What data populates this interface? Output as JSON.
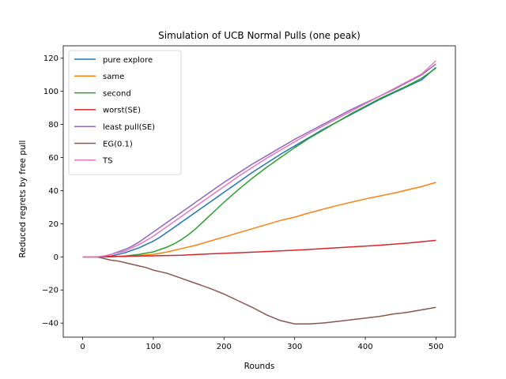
{
  "chart_data": {
    "type": "line",
    "title": "Simulation of UCB Normal Pulls (one peak)",
    "xlabel": "Rounds",
    "ylabel": "Reduced regrets by free pull",
    "xlim": [
      -27.5,
      527.5
    ],
    "ylim": [
      -48.5,
      127.5
    ],
    "xticks": [
      0,
      100,
      200,
      300,
      400,
      500
    ],
    "yticks": [
      -40,
      -20,
      0,
      20,
      40,
      60,
      80,
      100,
      120
    ],
    "legend_position": "top-left",
    "grid": false,
    "series": [
      {
        "name": "pure explore",
        "color": "#1f77b4",
        "points": [
          [
            0,
            0
          ],
          [
            20,
            0
          ],
          [
            40,
            0.5
          ],
          [
            50,
            1.5
          ],
          [
            60,
            2.5
          ],
          [
            70,
            4
          ],
          [
            80,
            5.5
          ],
          [
            90,
            7.5
          ],
          [
            100,
            9.5
          ],
          [
            110,
            12
          ],
          [
            120,
            15
          ],
          [
            130,
            18
          ],
          [
            140,
            21
          ],
          [
            150,
            24
          ],
          [
            160,
            27
          ],
          [
            170,
            30
          ],
          [
            180,
            33
          ],
          [
            190,
            36
          ],
          [
            200,
            39
          ],
          [
            220,
            45
          ],
          [
            240,
            51
          ],
          [
            260,
            56.5
          ],
          [
            280,
            62
          ],
          [
            300,
            67
          ],
          [
            320,
            72
          ],
          [
            340,
            77
          ],
          [
            360,
            81.5
          ],
          [
            380,
            86
          ],
          [
            400,
            90.5
          ],
          [
            420,
            95
          ],
          [
            440,
            99
          ],
          [
            460,
            103
          ],
          [
            480,
            107
          ],
          [
            500,
            114.5
          ]
        ]
      },
      {
        "name": "same",
        "color": "#ff7f0e",
        "points": [
          [
            0,
            0
          ],
          [
            20,
            0
          ],
          [
            40,
            0.3
          ],
          [
            60,
            0.5
          ],
          [
            80,
            0.8
          ],
          [
            100,
            1.5
          ],
          [
            120,
            3
          ],
          [
            140,
            5
          ],
          [
            160,
            7
          ],
          [
            180,
            9.5
          ],
          [
            200,
            12
          ],
          [
            240,
            17
          ],
          [
            280,
            22
          ],
          [
            300,
            24
          ],
          [
            320,
            26.5
          ],
          [
            360,
            31
          ],
          [
            400,
            35
          ],
          [
            440,
            38.5
          ],
          [
            480,
            42.5
          ],
          [
            500,
            45
          ]
        ]
      },
      {
        "name": "second",
        "color": "#2ca02c",
        "points": [
          [
            0,
            0
          ],
          [
            20,
            0
          ],
          [
            40,
            0
          ],
          [
            60,
            0.5
          ],
          [
            80,
            1.5
          ],
          [
            100,
            3
          ],
          [
            110,
            4.5
          ],
          [
            120,
            6
          ],
          [
            130,
            8
          ],
          [
            140,
            10.5
          ],
          [
            150,
            13.5
          ],
          [
            160,
            17
          ],
          [
            170,
            21
          ],
          [
            180,
            25
          ],
          [
            190,
            29
          ],
          [
            200,
            33
          ],
          [
            220,
            40.5
          ],
          [
            240,
            47.5
          ],
          [
            260,
            54
          ],
          [
            280,
            60
          ],
          [
            300,
            66
          ],
          [
            320,
            71.5
          ],
          [
            340,
            76.5
          ],
          [
            360,
            81.5
          ],
          [
            380,
            86.5
          ],
          [
            400,
            91
          ],
          [
            420,
            95.5
          ],
          [
            440,
            99.5
          ],
          [
            460,
            103.5
          ],
          [
            480,
            108
          ],
          [
            500,
            114
          ]
        ]
      },
      {
        "name": "worst(SE)",
        "color": "#d62728",
        "points": [
          [
            0,
            0
          ],
          [
            20,
            0
          ],
          [
            40,
            0.3
          ],
          [
            60,
            0.3
          ],
          [
            80,
            0.5
          ],
          [
            100,
            0.6
          ],
          [
            140,
            1
          ],
          [
            180,
            1.8
          ],
          [
            220,
            2.5
          ],
          [
            260,
            3.2
          ],
          [
            300,
            4
          ],
          [
            340,
            5
          ],
          [
            380,
            6
          ],
          [
            420,
            7
          ],
          [
            460,
            8.3
          ],
          [
            500,
            10
          ]
        ]
      },
      {
        "name": "least pull(SE)",
        "color": "#9467bd",
        "points": [
          [
            0,
            0
          ],
          [
            20,
            0
          ],
          [
            30,
            0.5
          ],
          [
            40,
            1.5
          ],
          [
            50,
            3
          ],
          [
            60,
            4.5
          ],
          [
            70,
            6.5
          ],
          [
            80,
            9
          ],
          [
            90,
            12
          ],
          [
            100,
            15
          ],
          [
            110,
            18
          ],
          [
            120,
            21
          ],
          [
            140,
            27
          ],
          [
            160,
            33
          ],
          [
            180,
            39
          ],
          [
            200,
            45
          ],
          [
            220,
            50.5
          ],
          [
            240,
            56
          ],
          [
            260,
            61
          ],
          [
            280,
            66
          ],
          [
            300,
            71
          ],
          [
            320,
            75.5
          ],
          [
            340,
            80
          ],
          [
            360,
            84.5
          ],
          [
            380,
            89
          ],
          [
            400,
            93
          ],
          [
            420,
            97
          ],
          [
            440,
            101
          ],
          [
            460,
            105.5
          ],
          [
            480,
            110
          ],
          [
            500,
            116.5
          ]
        ]
      },
      {
        "name": "EG(0.1)",
        "color": "#8c564b",
        "points": [
          [
            0,
            0
          ],
          [
            20,
            0
          ],
          [
            30,
            -1
          ],
          [
            40,
            -2
          ],
          [
            50,
            -2.5
          ],
          [
            60,
            -3.5
          ],
          [
            70,
            -4.5
          ],
          [
            80,
            -5.5
          ],
          [
            90,
            -6.5
          ],
          [
            100,
            -8
          ],
          [
            110,
            -9
          ],
          [
            120,
            -10
          ],
          [
            140,
            -13
          ],
          [
            160,
            -16
          ],
          [
            180,
            -19
          ],
          [
            200,
            -22.5
          ],
          [
            220,
            -26.5
          ],
          [
            240,
            -30.5
          ],
          [
            260,
            -35
          ],
          [
            280,
            -38.5
          ],
          [
            300,
            -40.5
          ],
          [
            320,
            -40.5
          ],
          [
            340,
            -40
          ],
          [
            360,
            -39
          ],
          [
            380,
            -38
          ],
          [
            400,
            -37
          ],
          [
            420,
            -36
          ],
          [
            440,
            -34.5
          ],
          [
            460,
            -33.5
          ],
          [
            480,
            -32
          ],
          [
            500,
            -30.5
          ]
        ]
      },
      {
        "name": "TS",
        "color": "#e377c2",
        "points": [
          [
            0,
            0
          ],
          [
            20,
            0
          ],
          [
            30,
            0.5
          ],
          [
            40,
            1.5
          ],
          [
            50,
            2.5
          ],
          [
            60,
            3.5
          ],
          [
            70,
            5.5
          ],
          [
            80,
            7.5
          ],
          [
            90,
            10
          ],
          [
            100,
            12.5
          ],
          [
            110,
            15.5
          ],
          [
            120,
            18.5
          ],
          [
            140,
            24.5
          ],
          [
            160,
            30.5
          ],
          [
            180,
            36.5
          ],
          [
            200,
            42.5
          ],
          [
            220,
            48.5
          ],
          [
            240,
            54
          ],
          [
            260,
            59.5
          ],
          [
            280,
            64.5
          ],
          [
            300,
            69.5
          ],
          [
            320,
            74.5
          ],
          [
            340,
            79
          ],
          [
            360,
            83.5
          ],
          [
            380,
            88
          ],
          [
            400,
            92.5
          ],
          [
            420,
            97
          ],
          [
            440,
            101.5
          ],
          [
            460,
            106
          ],
          [
            480,
            110.5
          ],
          [
            500,
            118.5
          ]
        ]
      }
    ]
  }
}
